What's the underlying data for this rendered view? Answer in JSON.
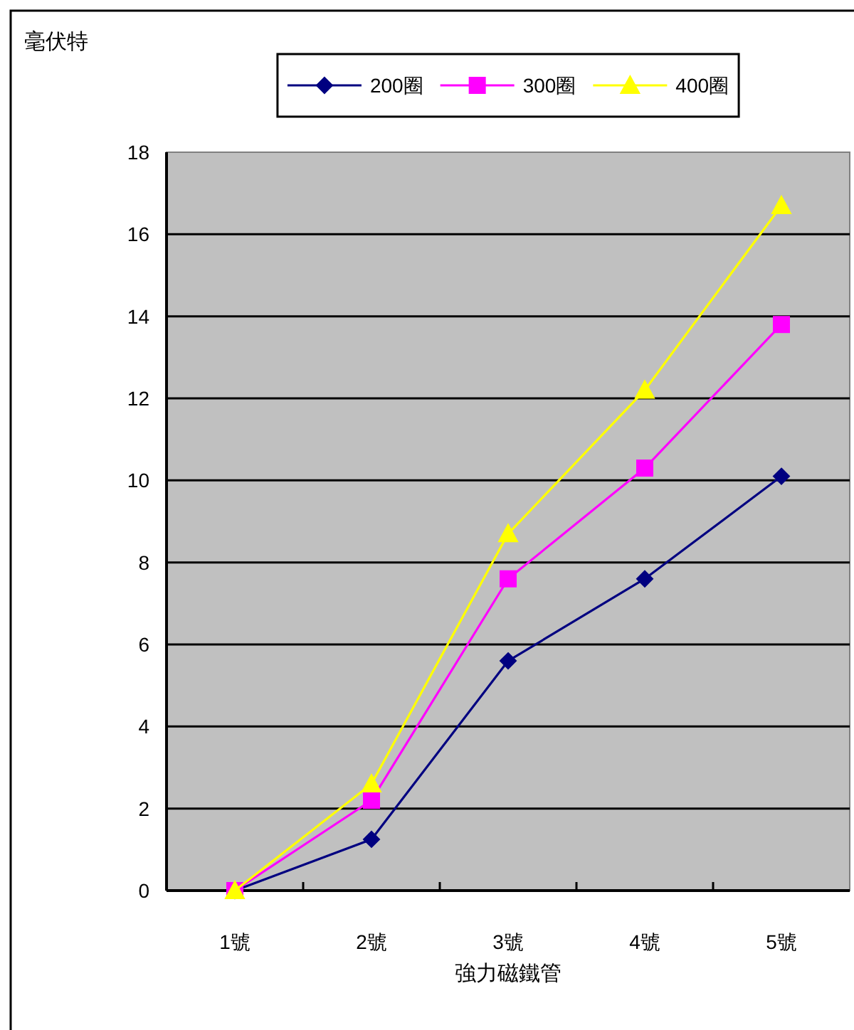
{
  "chart_data": {
    "type": "line",
    "ylabel": "毫伏特",
    "xlabel": "強力磁鐵管",
    "categories": [
      "1號",
      "2號",
      "3號",
      "4號",
      "5號"
    ],
    "series": [
      {
        "name": "200圈",
        "color": "#000080",
        "marker": "diamond",
        "values": [
          0,
          1.25,
          5.6,
          7.6,
          10.1
        ]
      },
      {
        "name": "300圈",
        "color": "#ff00ff",
        "marker": "square",
        "values": [
          0,
          2.2,
          7.6,
          10.3,
          13.8
        ]
      },
      {
        "name": "400圈",
        "color": "#ffff00",
        "marker": "triangle",
        "values": [
          0,
          2.6,
          8.7,
          12.2,
          16.7
        ]
      }
    ],
    "ylim": [
      0,
      18
    ],
    "yticks": [
      0,
      2,
      4,
      6,
      8,
      10,
      12,
      14,
      16,
      18
    ],
    "grid": "y",
    "legend": "top"
  }
}
